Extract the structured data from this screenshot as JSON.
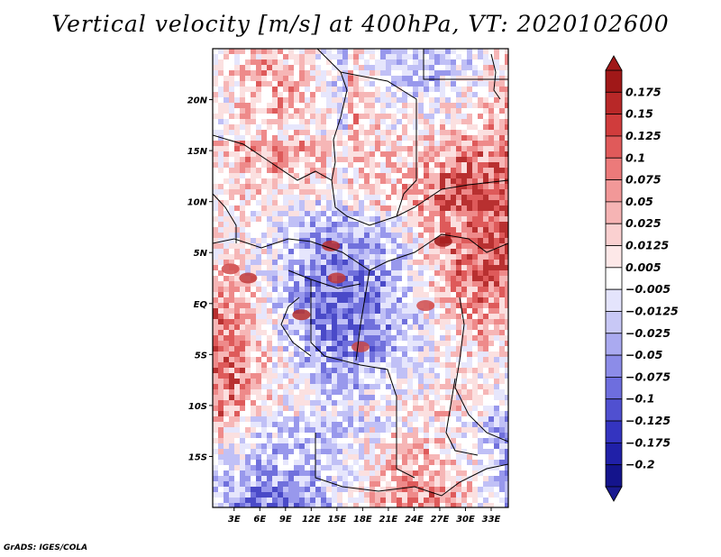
{
  "title": "Vertical velocity [m/s] at 400hPa, VT: 2020102600",
  "credit": "GrADS: IGES/COLA",
  "chart_data": {
    "type": "heatmap",
    "title": "Vertical velocity [m/s] at 400hPa, VT: 2020102600",
    "variable": "Vertical velocity",
    "units": "m/s",
    "level": "400hPa",
    "valid_time": "2020102600",
    "x_ticks": [
      "3E",
      "6E",
      "9E",
      "12E",
      "15E",
      "18E",
      "21E",
      "24E",
      "27E",
      "30E",
      "33E"
    ],
    "x_tick_values": [
      3,
      6,
      9,
      12,
      15,
      18,
      21,
      24,
      27,
      30,
      33
    ],
    "y_ticks": [
      "20N",
      "15N",
      "10N",
      "5N",
      "EQ",
      "5S",
      "10S",
      "15S"
    ],
    "y_tick_values": [
      20,
      15,
      10,
      5,
      0,
      -5,
      -10,
      -15
    ],
    "xlim": [
      0.5,
      35
    ],
    "ylim": [
      -20,
      25
    ],
    "colorbar": {
      "levels": [
        "0.175",
        "0.15",
        "0.125",
        "0.1",
        "0.075",
        "0.05",
        "0.025",
        "0.0125",
        "0.005",
        "−0.005",
        "−0.0125",
        "−0.025",
        "−0.05",
        "−0.075",
        "−0.1",
        "−0.125",
        "−0.175",
        "−0.2"
      ],
      "colors": [
        "#a01818",
        "#b82828",
        "#d03c3c",
        "#e05a5a",
        "#ec7a7a",
        "#f29898",
        "#f6b4b4",
        "#fad0d0",
        "#fde8e8",
        "#ffffff",
        "#e4e4fc",
        "#c8c8f6",
        "#aaaaf0",
        "#8c8ce8",
        "#6e6ede",
        "#5050d0",
        "#3434c0",
        "#2020a8",
        "#14148c"
      ],
      "top_color": "#a01818",
      "bottom_color": "#1a1a90"
    },
    "field": {
      "colors": [
        "#4a4ac8",
        "#7070dc",
        "#9898ec",
        "#c0c0f6",
        "#e6e6fc",
        "#ffffff",
        "#fbe0e0",
        "#f6b6b6",
        "#ee8a8a",
        "#de5a5a",
        "#b83030"
      ],
      "notable_features": [
        "strong ascent near 7N 14E",
        "strong ascent near 7N 27E",
        "noisy convection along 3N-5N west coast"
      ]
    }
  }
}
